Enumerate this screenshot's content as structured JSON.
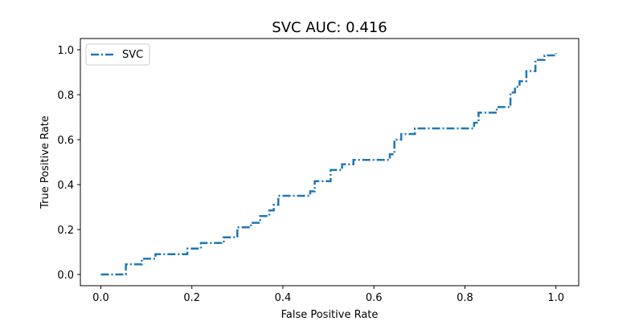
{
  "chart_data": {
    "type": "line",
    "title": "SVC AUC: 0.416",
    "xlabel": "False Positive Rate",
    "ylabel": "True Positive Rate",
    "xlim": [
      -0.045,
      1.05
    ],
    "ylim": [
      -0.05,
      1.05
    ],
    "xticks": [
      0.0,
      0.2,
      0.4,
      0.6,
      0.8,
      1.0
    ],
    "xtick_labels": [
      "0.0",
      "0.2",
      "0.4",
      "0.6",
      "0.8",
      "1.0"
    ],
    "yticks": [
      0.0,
      0.2,
      0.4,
      0.6,
      0.8,
      1.0
    ],
    "ytick_labels": [
      "0.0",
      "0.2",
      "0.4",
      "0.6",
      "0.8",
      "1.0"
    ],
    "legend": {
      "position": "upper-left",
      "entries": [
        "SVC"
      ]
    },
    "series": [
      {
        "name": "SVC",
        "color": "#1f77b4",
        "linestyle": "dashdot",
        "x": [
          0.0,
          0.055,
          0.055,
          0.09,
          0.09,
          0.12,
          0.12,
          0.19,
          0.19,
          0.22,
          0.22,
          0.27,
          0.27,
          0.3,
          0.3,
          0.33,
          0.33,
          0.35,
          0.35,
          0.37,
          0.37,
          0.38,
          0.38,
          0.39,
          0.39,
          0.46,
          0.46,
          0.47,
          0.47,
          0.505,
          0.505,
          0.53,
          0.53,
          0.555,
          0.555,
          0.635,
          0.635,
          0.645,
          0.645,
          0.66,
          0.66,
          0.69,
          0.69,
          0.75,
          0.75,
          0.82,
          0.82,
          0.83,
          0.83,
          0.87,
          0.87,
          0.9,
          0.9,
          0.91,
          0.91,
          0.92,
          0.92,
          0.935,
          0.935,
          0.955,
          0.955,
          0.975,
          0.975,
          1.0,
          1.0
        ],
        "y": [
          0.0,
          0.0,
          0.045,
          0.045,
          0.07,
          0.07,
          0.09,
          0.09,
          0.115,
          0.115,
          0.14,
          0.14,
          0.165,
          0.165,
          0.21,
          0.21,
          0.23,
          0.23,
          0.26,
          0.26,
          0.285,
          0.285,
          0.31,
          0.31,
          0.35,
          0.35,
          0.37,
          0.37,
          0.415,
          0.415,
          0.465,
          0.465,
          0.49,
          0.49,
          0.51,
          0.51,
          0.535,
          0.535,
          0.6,
          0.6,
          0.625,
          0.625,
          0.65,
          0.65,
          0.65,
          0.65,
          0.675,
          0.675,
          0.72,
          0.72,
          0.745,
          0.745,
          0.81,
          0.81,
          0.835,
          0.835,
          0.86,
          0.86,
          0.905,
          0.905,
          0.955,
          0.955,
          0.975,
          0.975,
          0.985
        ]
      }
    ]
  }
}
